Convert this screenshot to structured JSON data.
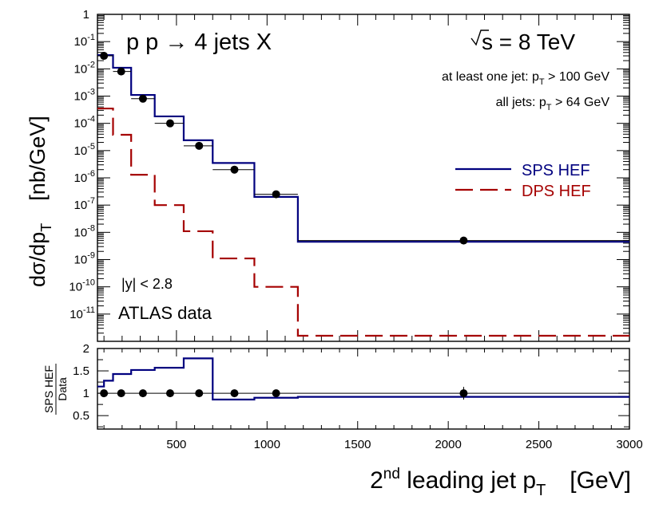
{
  "chart_data": [
    {
      "type": "line",
      "title": "p p → 4 jets X",
      "energy_label": "√s = 8 TeV",
      "annotations": {
        "cut1": "at least one jet: p_T > 100 GeV",
        "cut1_prefix": "at least one jet: p",
        "cut1_sub": "T",
        "cut1_suffix": " > 100 GeV",
        "cut2_prefix": "all jets: p",
        "cut2_sub": "T",
        "cut2_suffix": " > 64 GeV",
        "rapidity": "|y| < 2.8",
        "experiment": "ATLAS data"
      },
      "ylabel_main": "dσ/dp",
      "ylabel_sub": "T",
      "ylabel_unit": "[nb/GeV]",
      "yscale": "log",
      "ylim": [
        1e-12,
        1
      ],
      "xlim": [
        64,
        3000
      ],
      "y_ticks": [
        {
          "value": 1.0,
          "base": "1",
          "exp": ""
        },
        {
          "value": 0.1,
          "base": "10",
          "exp": "-1"
        },
        {
          "value": 0.01,
          "base": "10",
          "exp": "-2"
        },
        {
          "value": 0.001,
          "base": "10",
          "exp": "-3"
        },
        {
          "value": 0.0001,
          "base": "10",
          "exp": "-4"
        },
        {
          "value": 1e-05,
          "base": "10",
          "exp": "-5"
        },
        {
          "value": 1e-06,
          "base": "10",
          "exp": "-6"
        },
        {
          "value": 1e-07,
          "base": "10",
          "exp": "-7"
        },
        {
          "value": 1e-08,
          "base": "10",
          "exp": "-8"
        },
        {
          "value": 1e-09,
          "base": "10",
          "exp": "-9"
        },
        {
          "value": 1e-10,
          "base": "10",
          "exp": "-10"
        },
        {
          "value": 1e-11,
          "base": "10",
          "exp": "-11"
        }
      ],
      "bin_edges": [
        64,
        150,
        250,
        380,
        540,
        700,
        930,
        1170,
        3000
      ],
      "series": [
        {
          "name": "SPS HEF",
          "color": "#00007f",
          "style": "solid",
          "values": [
            0.032,
            0.011,
            0.0011,
            0.00018,
            2.4e-05,
            3.5e-06,
            2e-07,
            4.5e-09
          ]
        },
        {
          "name": "DPS HEF",
          "color": "#a50000",
          "style": "dashed",
          "values": [
            0.00035,
            3.8e-05,
            1.3e-06,
            1e-07,
            1.1e-08,
            1.1e-09,
            1e-10,
            1.6e-12
          ]
        }
      ],
      "data_points": {
        "name": "ATLAS data",
        "x": [
          100,
          195,
          315,
          465,
          625,
          820,
          1050,
          2085
        ],
        "y": [
          0.03,
          0.008,
          0.0008,
          0.0001,
          1.5e-05,
          2e-06,
          2.5e-07,
          5e-09
        ],
        "xerr": [
          [
            64,
            150
          ],
          [
            150,
            250
          ],
          [
            250,
            380
          ],
          [
            380,
            540
          ],
          [
            540,
            700
          ],
          [
            700,
            930
          ],
          [
            930,
            1170
          ],
          [
            1170,
            3000
          ]
        ]
      }
    },
    {
      "type": "line",
      "ylabel_top": "SPS HEF",
      "ylabel_bottom": "Data",
      "xlabel_pre": "2",
      "xlabel_sup": "nd",
      "xlabel_mid": " leading jet p",
      "xlabel_sub": "T",
      "xlabel_unit": "[GeV]",
      "ylim": [
        0.2,
        2.0
      ],
      "xlim": [
        64,
        3000
      ],
      "x_ticks": [
        "500",
        "1000",
        "1500",
        "2000",
        "2500",
        "3000"
      ],
      "x_tick_values": [
        500,
        1000,
        1500,
        2000,
        2500,
        3000
      ],
      "y_ticks": [
        "0.5",
        "1",
        "1.5",
        "2"
      ],
      "y_tick_values": [
        0.5,
        1,
        1.5,
        2
      ],
      "bin_edges": [
        64,
        100,
        150,
        250,
        380,
        540,
        700,
        930,
        1170,
        3000
      ],
      "series": [
        {
          "name": "SPS HEF / Data",
          "color": "#00007f",
          "values": [
            1.15,
            1.28,
            1.43,
            1.52,
            1.57,
            1.78,
            0.86,
            0.9,
            0.92
          ]
        }
      ],
      "data_points": {
        "x": [
          100,
          195,
          315,
          465,
          625,
          820,
          1050,
          2085
        ],
        "y": [
          1,
          1,
          1,
          1,
          1,
          1,
          1,
          1
        ]
      }
    }
  ]
}
